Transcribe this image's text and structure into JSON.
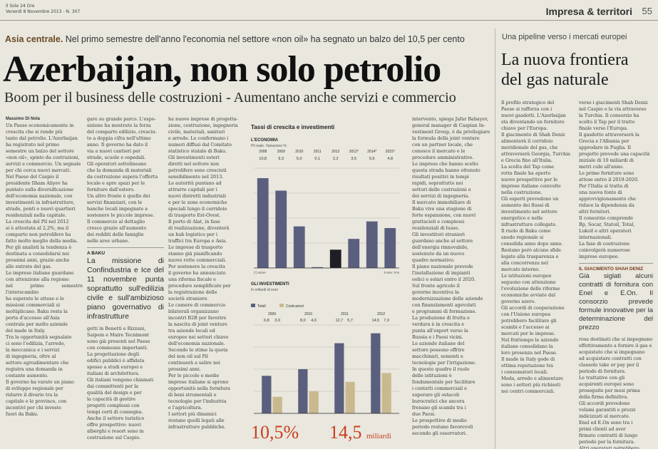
{
  "header": {
    "publication": "Il Sole 24 Ore",
    "date_line": "Venerdì 8 Novembre 2013 - N. 307",
    "section": "Impresa & territori",
    "page_number": "55"
  },
  "article": {
    "kicker_label": "Asia centrale.",
    "kicker_text": "Nel primo semestre dell'anno l'economia nel settore «non oil» ha segnato un balzo del 10,5 per cento",
    "headline": "Azerbaijan, non solo petrolio",
    "subheadline": "Boom per il business delle costruzioni - Aumentano anche servizi e commercio",
    "byline": "Massimo Di Nola",
    "col1": [
      "Un Paese economicamente in",
      "crescita che si rende più",
      "tanto dal petrolio. L'Azerbaijan",
      "ha registrato nel primo",
      "semestre un balzo del settore",
      "«non oil», spinto da costruzioni,",
      "servizi e commercio. Un segnale",
      "per chi cerca nuovi mercati.",
      "Nel Paese del Caspio il",
      "presidente Ilham Aliyev ha",
      "puntato sulla diversificazione",
      "dell'economia nazionale, con",
      "investimenti in infrastrutture,",
      "strade, ponti e nuovi quartieri",
      "residenziali nella capitale.",
      "La crescita del Pil nel 2012",
      "si è attestata al 2,2%, ma il",
      "comparto non petrolifero ha",
      "fatto molto meglio della media.",
      "Per gli analisti la tendenza è",
      "destinata a consolidarsi nei",
      "prossimi anni, grazie anche",
      "alle entrate del gas.",
      "Le imprese italiane guardano",
      "con attenzione alla regione:",
      "nel primo semestre l'interscambio",
      "ha superato le attese e le",
      "missioni commerciali si",
      "moltiplicano. Baku resta la",
      "porta d'accesso all'Asia",
      "centrale per molte aziende",
      "del made in Italy.",
      "Tra le opportunità segnalate",
      "ci sono l'edilizia, l'arredo,",
      "la meccanica e i servizi",
      "di ingegneria, oltre al",
      "settore agroalimentare che",
      "registra una domanda in",
      "costante aumento.",
      "Il governo ha varato un piano",
      "di sviluppo regionale per",
      "ridurre il divario tra la",
      "capitale e le province, con",
      "incentivi per chi investe",
      "fuori da Baku."
    ],
    "col2": [
      "gare su grande parco. L'espo-",
      "sizione ha mostrato la forza",
      "del comparto edilizio, cresciu-",
      "to a doppia cifra nell'ultimo",
      "anno. Il governo ha dato il",
      "via a nuovi cantieri per",
      "strade, scuole e ospedali.",
      "Gli operatori sottolineano",
      "che la domanda di materiali",
      "da costruzione supera l'offerta",
      "locale e apre spazi per le",
      "forniture dall'estero.",
      "Un altro fronte è quello dei",
      "servizi finanziari, con le",
      "banche locali impegnate a",
      "sostenere le piccole imprese.",
      "Il commercio al dettaglio",
      "cresce grazie all'aumento",
      "dei redditi delle famiglie",
      "nelle aree urbane."
    ],
    "box_head": "A BAKU",
    "box_text": "La missione di Confindustria e Ice del 11 novembre punta soprattutto sull'edilizia civile e sull'ambizioso piano governativo di infrastrutture",
    "col2b": [
      "getti in Benetti e Rizzani,",
      "Saipem e Maire Tecnimont",
      "sono già presenti nel Paese",
      "con commesse importanti.",
      "La progettazione degli",
      "edifici pubblici è affidata",
      "spesso a studi europei e",
      "italiani di architettura.",
      "Gli italiani vengono chiamati",
      "dai committenti per la",
      "qualità del design e per",
      "la capacità di gestire",
      "progetti complessi con",
      "tempi certi di consegna.",
      "Anche il settore turistico",
      "offre prospettive: nuovi",
      "alberghi e resort sono in",
      "costruzione sul Caspio."
    ],
    "col3": [
      "ha nuove imprese di progetta-",
      "zione, costruzione, ingegneria",
      "civile, materiali, sanitari",
      "e arredo. Lo confermano i",
      "numeri diffusi dal Comitato",
      "statistico statale di Baku.",
      "Gli investimenti esteri",
      "diretti nel settore non",
      "petrolifero sono cresciuti",
      "sensibilmente nel 2013.",
      "Le autorità puntano ad",
      "attrarre capitali per i",
      "nuovi distretti industriali",
      "e per le zone economiche",
      "speciali lungo il corridoio",
      "di trasporto Est-Ovest.",
      "Il porto di Alat, in fase",
      "di realizzazione, diventerà",
      "un hub logistico per i",
      "traffici tra Europa e Asia.",
      "Le imprese di trasporto",
      "stanno già pianificando",
      "nuove rotte commerciali.",
      "Per sostenere la crescita",
      "il governo ha annunciato",
      "una riforma fiscale e",
      "procedure semplificate per",
      "la registrazione delle",
      "società straniere.",
      "Le camere di commercio",
      "bilaterali organizzano",
      "incontri B2B per favorire",
      "la nascita di joint venture",
      "tra aziende locali ed",
      "europee nei settori chiave",
      "dell'economia nazionale.",
      "Secondo le stime la quota",
      "del non oil sul Pil",
      "continuerà a salire nei",
      "prossimi anni.",
      "Per le piccole e medie",
      "imprese italiane si aprono",
      "opportunità nella fornitura",
      "di beni strumentali e",
      "tecnologie per l'industria",
      "e l'agricoltura.",
      "I settori più dinamici",
      "restano quelli legati alle",
      "infrastrutture pubbliche."
    ],
    "col4": [
      "intervento, spiega Jafar Babayev,",
      "general manager di Caspian In-",
      "vestment Group, è da privilegiare",
      "la formula della joint venture",
      "con un partner locale, che",
      "conosce il mercato e le",
      "procedure amministrative.",
      "Le imprese che hanno scelto",
      "questa strada hanno ottenuto",
      "risultati positivi in tempi",
      "rapidi, soprattutto nei",
      "settori delle costruzioni e",
      "dei servizi di ingegneria.",
      "Il mercato immobiliare di",
      "Baku vive una stagione di",
      "forte espansione, con nuovi",
      "grattacieli e complessi",
      "residenziali di lusso.",
      "Gli investitori stranieri",
      "guardano anche al settore",
      "dell'energia rinnovabile,",
      "sostenuto da un nuovo",
      "quadro normativo.",
      "Il piano nazionale prevede",
      "l'installazione di impianti",
      "eolici e solari entro il 2020.",
      "Sul fronte agricolo il",
      "governo incentiva la",
      "modernizzazione delle aziende",
      "con finanziamenti agevolati",
      "e programmi di formazione.",
      "La produzione di frutta e",
      "verdura è in crescita e",
      "punta all'export verso la",
      "Russia e i Paesi vicini.",
      "Le aziende italiane del",
      "settore possono offrire",
      "macchinari, sementi e",
      "tecnologie per l'irrigazione.",
      "In questo quadro il ruolo",
      "delle istituzioni è",
      "fondamentale per facilitare",
      "i contatti commerciali e",
      "superare gli ostacoli",
      "burocratici che ancora",
      "frenano gli scambi tra i",
      "due Paesi.",
      "Le prospettive di medio",
      "periodo restano favorevoli",
      "secondo gli osservatori."
    ],
    "col5": [
      "Il profilo strategico del",
      "Paese si rafforza con i",
      "nuovi gasdotti. L'Azerbaijan",
      "sta diventando un fornitore",
      "chiave per l'Europa.",
      "Il giacimento di Shah Deniz",
      "alimenterà il corridoio",
      "meridionale del gas, che",
      "attraverserà Georgia, Turchia",
      "e Grecia fino all'Italia.",
      "La scelta del Tap come",
      "rotta finale ha aperto",
      "nuove prospettive per le",
      "imprese italiane coinvolte",
      "nella costruzione.",
      "Gli esperti prevedono un",
      "aumento dei flussi di",
      "investimento nel settore",
      "energetico e nelle",
      "infrastrutture collegate.",
      "Il ruolo di Baku come",
      "snodo regionale si",
      "consolida anno dopo anno.",
      "Restano però alcune sfide",
      "legate alla trasparenza e",
      "alla concorrenza nel",
      "mercato interno.",
      "Le istituzioni europee",
      "seguono con attenzione",
      "l'evoluzione delle riforme",
      "economiche avviate dal",
      "governo azero.",
      "Gli accordi di cooperazione",
      "con l'Unione europea",
      "potrebbero facilitare gli",
      "scambi e l'accesso ai",
      "mercati per le imprese.",
      "Nel frattempo le aziende",
      "italiane consolidano la",
      "loro presenza nel Paese.",
      "Il made in Italy gode di",
      "ottima reputazione tra",
      "i consumatori locali.",
      "Moda, arredo e alimentare",
      "sono i settori più richiesti",
      "nei centri commerciali."
    ],
    "col6": [
      "verso i giacimenti Shah Deniz",
      "nel Caspio e la via attraverso",
      "la Turchia. Il consorzio ha",
      "scelto il Tap per il tratto",
      "finale verso l'Europa.",
      "Il gasdotto attraverserà la",
      "Grecia e l'Albania per",
      "approdare in Puglia. Il",
      "progetto prevede una capacità",
      "iniziale di 10 miliardi di",
      "metri cubi all'anno.",
      "Le prime forniture sono",
      "attese entro il 2019-2020.",
      "Per l'Italia si tratta di",
      "una nuova fonte di",
      "approvvigionamento che",
      "riduce la dipendenza da",
      "altri fornitori.",
      "Il consorzio comprende",
      "Bp, Socar, Statoil, Total,",
      "Lukoil e altri operatori",
      "internazionali.",
      "La fase di costruzione",
      "coinvolgerà numerose",
      "imprese europee."
    ],
    "side_head": "IL GIACIMENTO SHAH DENIZ",
    "side_text": "Già siglati alcuni contratti di fornitura con Enel e E.On. Il consorzio prevede formule innovative per la determinazione del prezzo",
    "col6b": [
      "rosa destinati che si impegnano",
      "effettivamente a fornire il gas e",
      "acquistato che si impegnano",
      "ad acquistare contratti con",
      "clausole take or pay per il",
      "periodo di fornitura.",
      "Le trattative con gli",
      "acquirenti europei sono",
      "proseguite per mesi prima",
      "della firma definitiva.",
      "Gli accordi prevedono",
      "volumi garantiti e prezzi",
      "indicizzati al mercato.",
      "Enel ed E.On sono tra i",
      "primi clienti ad aver",
      "firmato contratti di lungo",
      "periodo per la fornitura.",
      "Altri operatori potrebbero",
      "aggiungersi nei prossimi",
      "mesi, secondo le fonti",
      "del consorzio."
    ]
  },
  "sidebar": {
    "kicker": "Una pipeline verso i mercati europei",
    "headline_line1": "La nuova frontiera",
    "headline_line2": "del gas naturale"
  },
  "highlights": {
    "left_value": "10,5%",
    "right_value": "14,5",
    "right_unit": "miliardi"
  },
  "chart_data": [
    {
      "type": "bar",
      "title": "Tassi di crescita e investimenti",
      "panel_title": "L'ECONOMIA",
      "panel_subtitle": "Pil reale. Variazione %",
      "categories": [
        "2008",
        "2009",
        "2010",
        "2011",
        "2012",
        "2013*",
        "2014*",
        "2015*"
      ],
      "values": [
        10.8,
        9.3,
        5.0,
        0.1,
        2.2,
        3.5,
        5.6,
        4.8
      ],
      "value_labels": [
        "10,8",
        "9,3",
        "5,0",
        "0,1",
        "2,2",
        "3,5",
        "5,6",
        "4,8"
      ],
      "highlight_index": 4,
      "notes_left": "(*) stime",
      "notes_right": "Fonte: Fmi",
      "ylim": [
        0,
        12
      ],
      "colors": {
        "bar": "#5b5f7e",
        "highlight": "#1e1e24"
      }
    },
    {
      "type": "bar",
      "panel_title": "GLI INVESTIMENTI",
      "panel_subtitle": "In miliardi di euro",
      "legend": [
        "Totali",
        "Costruzioni"
      ],
      "categories": [
        "2009",
        "2010",
        "2011",
        "2012"
      ],
      "series": [
        {
          "name": "Totali",
          "values": [
            6.8,
            8.0,
            12.7,
            14.5
          ]
        },
        {
          "name": "Costruzioni",
          "values": [
            3.0,
            4.0,
            5.7,
            7.3
          ]
        }
      ],
      "value_labels": [
        [
          "6,8",
          "3,0"
        ],
        [
          "8,0",
          "4,0"
        ],
        [
          "12,7",
          "5,7"
        ],
        [
          "14,5",
          "7,3"
        ]
      ],
      "ylim": [
        0,
        16
      ],
      "colors": {
        "Totali": "#5b5f7e",
        "Costruzioni": "#c9b98e"
      }
    }
  ]
}
